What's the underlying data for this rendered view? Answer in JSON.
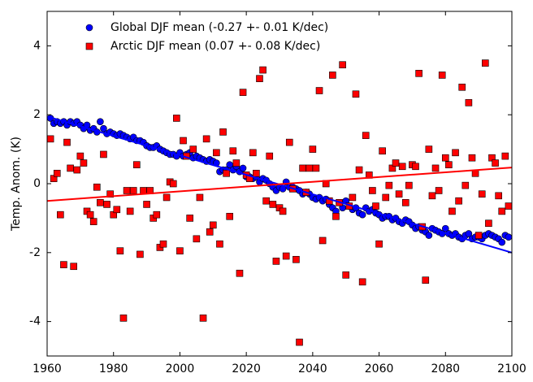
{
  "chart_data": {
    "type": "scatter",
    "ylabel": "Temp. Anom. (K)",
    "xlim": [
      1960,
      2100
    ],
    "xticks": [
      1960,
      1980,
      2000,
      2020,
      2040,
      2060,
      2080,
      2100
    ],
    "ylim": [
      -5,
      5
    ],
    "yticks": [
      -4,
      -2,
      0,
      2,
      4
    ],
    "legend": "upper left",
    "x": [
      1961,
      1962,
      1963,
      1964,
      1965,
      1966,
      1967,
      1968,
      1969,
      1970,
      1971,
      1972,
      1973,
      1974,
      1975,
      1976,
      1977,
      1978,
      1979,
      1980,
      1981,
      1982,
      1983,
      1984,
      1985,
      1986,
      1987,
      1988,
      1989,
      1990,
      1991,
      1992,
      1993,
      1994,
      1995,
      1996,
      1997,
      1998,
      1999,
      2000,
      2001,
      2002,
      2003,
      2004,
      2005,
      2006,
      2007,
      2008,
      2009,
      2010,
      2011,
      2012,
      2013,
      2014,
      2015,
      2016,
      2017,
      2018,
      2019,
      2020,
      2021,
      2022,
      2023,
      2024,
      2025,
      2026,
      2027,
      2028,
      2029,
      2030,
      2031,
      2032,
      2033,
      2034,
      2035,
      2036,
      2037,
      2038,
      2039,
      2040,
      2041,
      2042,
      2043,
      2044,
      2045,
      2046,
      2047,
      2048,
      2049,
      2050,
      2051,
      2052,
      2053,
      2054,
      2055,
      2056,
      2057,
      2058,
      2059,
      2060,
      2061,
      2062,
      2063,
      2064,
      2065,
      2066,
      2067,
      2068,
      2069,
      2070,
      2071,
      2072,
      2073,
      2074,
      2075,
      2076,
      2077,
      2078,
      2079,
      2080,
      2081,
      2082,
      2083,
      2084,
      2085,
      2086,
      2087,
      2088,
      2089,
      2090,
      2091,
      2092,
      2093,
      2094,
      2095,
      2096,
      2097,
      2098,
      2099
    ],
    "series": [
      {
        "name": "Global DJF mean (-0.27 +- 0.01 K/dec)",
        "color": "#0000ff",
        "marker": "o",
        "values": [
          1.9,
          1.75,
          1.8,
          1.75,
          1.8,
          1.7,
          1.8,
          1.75,
          1.8,
          1.7,
          1.6,
          1.7,
          1.55,
          1.6,
          1.5,
          1.8,
          1.6,
          1.45,
          1.5,
          1.45,
          1.4,
          1.45,
          1.4,
          1.35,
          1.3,
          1.35,
          1.25,
          1.25,
          1.2,
          1.1,
          1.05,
          1.05,
          1.1,
          1.0,
          0.95,
          0.9,
          0.85,
          0.85,
          0.8,
          0.9,
          0.8,
          0.85,
          0.9,
          0.75,
          0.8,
          0.75,
          0.7,
          0.65,
          0.7,
          0.65,
          0.6,
          0.35,
          0.4,
          0.4,
          0.55,
          0.4,
          0.5,
          0.35,
          0.45,
          0.2,
          0.2,
          0.15,
          0.2,
          0.05,
          0.15,
          0.1,
          0.0,
          -0.1,
          -0.2,
          -0.1,
          -0.15,
          0.05,
          -0.1,
          -0.1,
          -0.15,
          -0.2,
          -0.3,
          -0.25,
          -0.3,
          -0.4,
          -0.45,
          -0.4,
          -0.5,
          -0.45,
          -0.6,
          -0.7,
          -0.8,
          -0.55,
          -0.7,
          -0.5,
          -0.65,
          -0.75,
          -0.7,
          -0.85,
          -0.9,
          -0.7,
          -0.8,
          -0.75,
          -0.85,
          -0.9,
          -1.0,
          -0.95,
          -0.95,
          -1.05,
          -1.0,
          -1.1,
          -1.15,
          -1.05,
          -1.1,
          -1.2,
          -1.3,
          -1.25,
          -1.35,
          -1.4,
          -1.5,
          -1.3,
          -1.35,
          -1.4,
          -1.45,
          -1.3,
          -1.45,
          -1.5,
          -1.45,
          -1.55,
          -1.6,
          -1.5,
          -1.45,
          -1.6,
          -1.55,
          -1.55,
          -1.6,
          -1.5,
          -1.45,
          -1.5,
          -1.55,
          -1.6,
          -1.7,
          -1.5,
          -1.55
        ]
      },
      {
        "name": "Arctic DJF mean (0.07 +- 0.08 K/dec)",
        "color": "#ff0000",
        "marker": "s",
        "values": [
          1.3,
          0.15,
          0.3,
          -0.9,
          -2.35,
          1.2,
          0.45,
          -2.4,
          0.4,
          0.8,
          0.6,
          -0.8,
          -0.9,
          -1.1,
          -0.1,
          -0.55,
          0.85,
          -0.6,
          -0.3,
          -0.9,
          -0.75,
          -1.95,
          -3.9,
          -0.2,
          -0.8,
          -0.2,
          0.55,
          -2.05,
          -0.2,
          -0.6,
          -0.2,
          -1.0,
          -0.9,
          -1.85,
          -1.75,
          -0.4,
          0.05,
          0.0,
          1.9,
          -1.95,
          1.25,
          0.8,
          -1.0,
          1.0,
          -1.6,
          -0.4,
          -3.9,
          1.3,
          -1.4,
          -1.2,
          0.9,
          -1.75,
          1.5,
          0.3,
          -0.95,
          0.95,
          0.6,
          -2.6,
          2.65,
          0.25,
          0.15,
          0.9,
          0.3,
          3.05,
          3.3,
          -0.5,
          0.8,
          -0.6,
          -2.25,
          -0.7,
          -0.8,
          -2.1,
          1.2,
          -0.15,
          -2.2,
          -4.6,
          0.45,
          -0.25,
          0.45,
          1.0,
          0.45,
          2.7,
          -1.65,
          0.0,
          -0.5,
          3.15,
          -0.95,
          -0.55,
          3.45,
          -2.65,
          -0.65,
          -0.4,
          2.6,
          0.4,
          -2.85,
          1.4,
          0.25,
          -0.2,
          -0.65,
          -1.75,
          0.95,
          -0.4,
          -0.05,
          0.45,
          0.6,
          -0.3,
          0.5,
          -0.55,
          -0.05,
          0.55,
          0.5,
          3.2,
          -1.25,
          -2.8,
          1.0,
          -0.35,
          0.45,
          -0.2,
          3.15,
          0.75,
          0.55,
          -0.8,
          0.9,
          -0.5,
          2.8,
          -0.05,
          2.35,
          0.75,
          0.3,
          -1.5,
          -0.3,
          3.5,
          -1.15,
          0.75,
          0.6,
          -0.35,
          -0.8,
          0.8,
          -0.65
        ]
      }
    ],
    "trend_lines": [
      {
        "color": "#0000ff",
        "x": [
          1960,
          2100
        ],
        "values": [
          1.95,
          -2.0
        ]
      },
      {
        "color": "#ff0000",
        "x": [
          1960,
          2100
        ],
        "values": [
          -0.5,
          0.47
        ]
      }
    ]
  }
}
